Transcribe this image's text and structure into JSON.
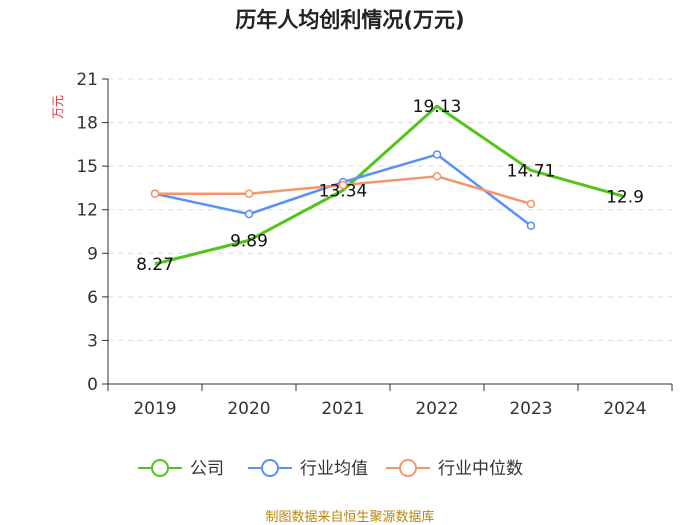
{
  "title": "历年人均创利情况(万元)",
  "source": "制图数据来自恒生聚源数据库",
  "chart_data": {
    "type": "line",
    "title": "历年人均创利情况(万元)",
    "ylabel": "万元",
    "ylim": [
      0,
      21
    ],
    "yticks": [
      0,
      3,
      6,
      9,
      12,
      15,
      18,
      21
    ],
    "categories": [
      "2019",
      "2020",
      "2021",
      "2022",
      "2023",
      "2024"
    ],
    "legend_position": "bottom",
    "series": [
      {
        "name": "公司",
        "color": "#52c41a",
        "values": [
          8.27,
          9.89,
          13.34,
          19.13,
          14.71,
          12.9
        ],
        "labels": [
          "8.27",
          "9.89",
          "13.34",
          "19.13",
          "14.71",
          "12.9"
        ],
        "markers": false
      },
      {
        "name": "行业均值",
        "color": "#5b8ff9",
        "values": [
          13.1,
          11.7,
          13.9,
          15.8,
          10.9,
          null
        ],
        "markers": true
      },
      {
        "name": "行业中位数",
        "color": "#f7956a",
        "values": [
          13.1,
          13.1,
          13.7,
          14.3,
          12.4,
          null
        ],
        "markers": true
      }
    ]
  }
}
